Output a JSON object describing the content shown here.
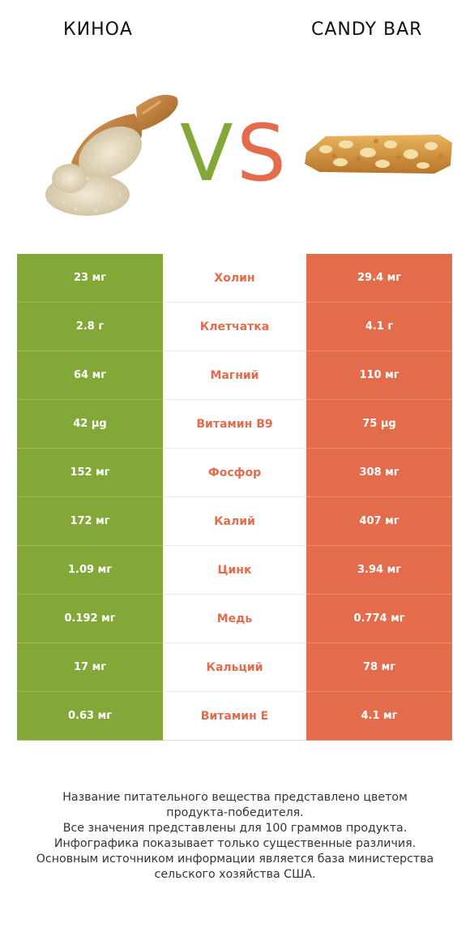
{
  "header": {
    "left_title": "КИНОА",
    "right_title": "CANDY BAR",
    "vs_left": "V",
    "vs_right": "S"
  },
  "colors": {
    "left": "#84a838",
    "right": "#e36c4d"
  },
  "rows": [
    {
      "left": "23 мг",
      "nutrient": "Холин",
      "right": "29.4 мг"
    },
    {
      "left": "2.8 г",
      "nutrient": "Клетчатка",
      "right": "4.1 г"
    },
    {
      "left": "64 мг",
      "nutrient": "Магний",
      "right": "110 мг"
    },
    {
      "left": "42 µg",
      "nutrient": "Витамин B9",
      "right": "75 µg"
    },
    {
      "left": "152 мг",
      "nutrient": "Фосфор",
      "right": "308 мг"
    },
    {
      "left": "172 мг",
      "nutrient": "Калий",
      "right": "407 мг"
    },
    {
      "left": "1.09 мг",
      "nutrient": "Цинк",
      "right": "3.94 мг"
    },
    {
      "left": "0.192 мг",
      "nutrient": "Медь",
      "right": "0.774 мг"
    },
    {
      "left": "17 мг",
      "nutrient": "Кальций",
      "right": "78 мг"
    },
    {
      "left": "0.63 мг",
      "nutrient": "Витамин E",
      "right": "4.1 мг"
    }
  ],
  "footer": [
    "Название питательного вещества представлено цветом",
    "продукта-победителя.",
    "Все значения представлены для 100 граммов продукта.",
    "Инфографика показывает только существенные различия.",
    "Основным источником информации является база министерства",
    "сельского хозяйства США."
  ]
}
